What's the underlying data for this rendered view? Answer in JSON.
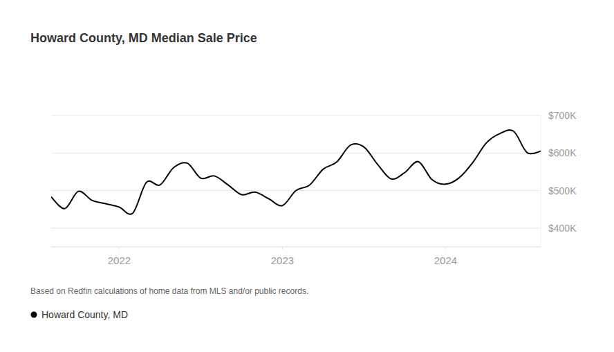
{
  "chart_data": {
    "type": "line",
    "title": "Howard County, MD Median Sale Price",
    "source": "Based on Redfin calculations of home data from MLS and/or public records.",
    "x": [
      2021.583,
      2021.667,
      2021.75,
      2021.833,
      2021.917,
      2022.0,
      2022.083,
      2022.167,
      2022.25,
      2022.333,
      2022.417,
      2022.5,
      2022.583,
      2022.667,
      2022.75,
      2022.833,
      2022.917,
      2023.0,
      2023.083,
      2023.167,
      2023.25,
      2023.333,
      2023.417,
      2023.5,
      2023.583,
      2023.667,
      2023.75,
      2023.833,
      2023.917,
      2024.0,
      2024.083,
      2024.167,
      2024.25,
      2024.333,
      2024.417,
      2024.5,
      2024.583
    ],
    "series": [
      {
        "name": "Howard County, MD",
        "color": "#000000",
        "values": [
          483000,
          452000,
          498000,
          474000,
          465000,
          456000,
          440000,
          522000,
          515000,
          561000,
          573000,
          533000,
          539000,
          515000,
          489000,
          496000,
          478000,
          460000,
          500000,
          515000,
          557000,
          576000,
          621000,
          616000,
          570000,
          531000,
          548000,
          577000,
          529000,
          517000,
          534000,
          575000,
          627000,
          652000,
          658000,
          601000,
          605000
        ]
      }
    ],
    "xlim": [
      2021.583,
      2024.583
    ],
    "xticks": [
      2022,
      2023,
      2024
    ],
    "ylim": [
      350000,
      700000
    ],
    "yticks": [
      {
        "value": 400000,
        "label": "$400K"
      },
      {
        "value": 500000,
        "label": "$500K"
      },
      {
        "value": 600000,
        "label": "$600K"
      },
      {
        "value": 700000,
        "label": "$700K"
      }
    ],
    "grid": true,
    "legend": "bottom-left"
  }
}
